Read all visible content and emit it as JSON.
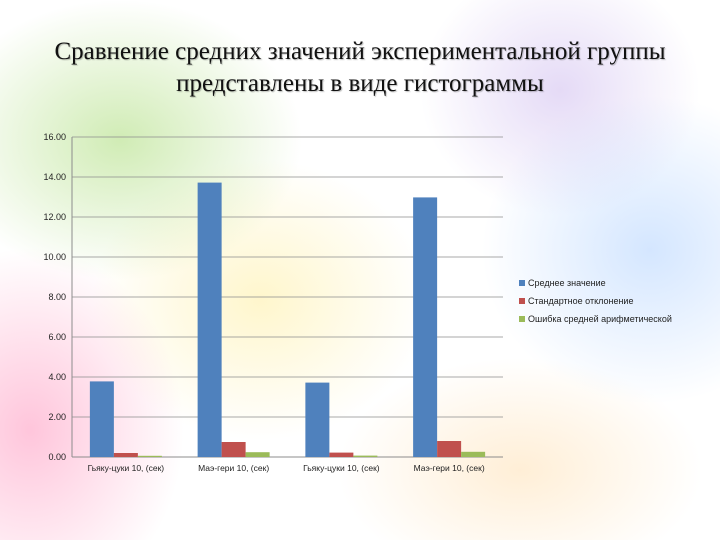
{
  "slide": {
    "title": "Сравнение средних значений экспериментальной группы представлены в виде гистограммы"
  },
  "chart_data": {
    "type": "bar",
    "categories": [
      "Гьяку-цуки 10, (сек)",
      "Маэ-гери 10, (сек)",
      "Гьяку-цуки 10, (сек)",
      "Маэ-гери 10, (сек)"
    ],
    "series": [
      {
        "name": "Среднее значение",
        "color": "#4f81bd",
        "values": [
          3.78,
          13.72,
          3.72,
          12.98
        ]
      },
      {
        "name": "Стандартное отклонение",
        "color": "#c0504d",
        "values": [
          0.2,
          0.75,
          0.22,
          0.8
        ]
      },
      {
        "name": "Ошибка средней арифметической",
        "color": "#9bbb59",
        "values": [
          0.06,
          0.24,
          0.07,
          0.26
        ]
      }
    ],
    "ylim": [
      0,
      16
    ],
    "yticks": [
      "0.00",
      "2.00",
      "4.00",
      "6.00",
      "8.00",
      "10.00",
      "12.00",
      "14.00",
      "16.00"
    ],
    "grid": true,
    "legend_position": "right"
  }
}
